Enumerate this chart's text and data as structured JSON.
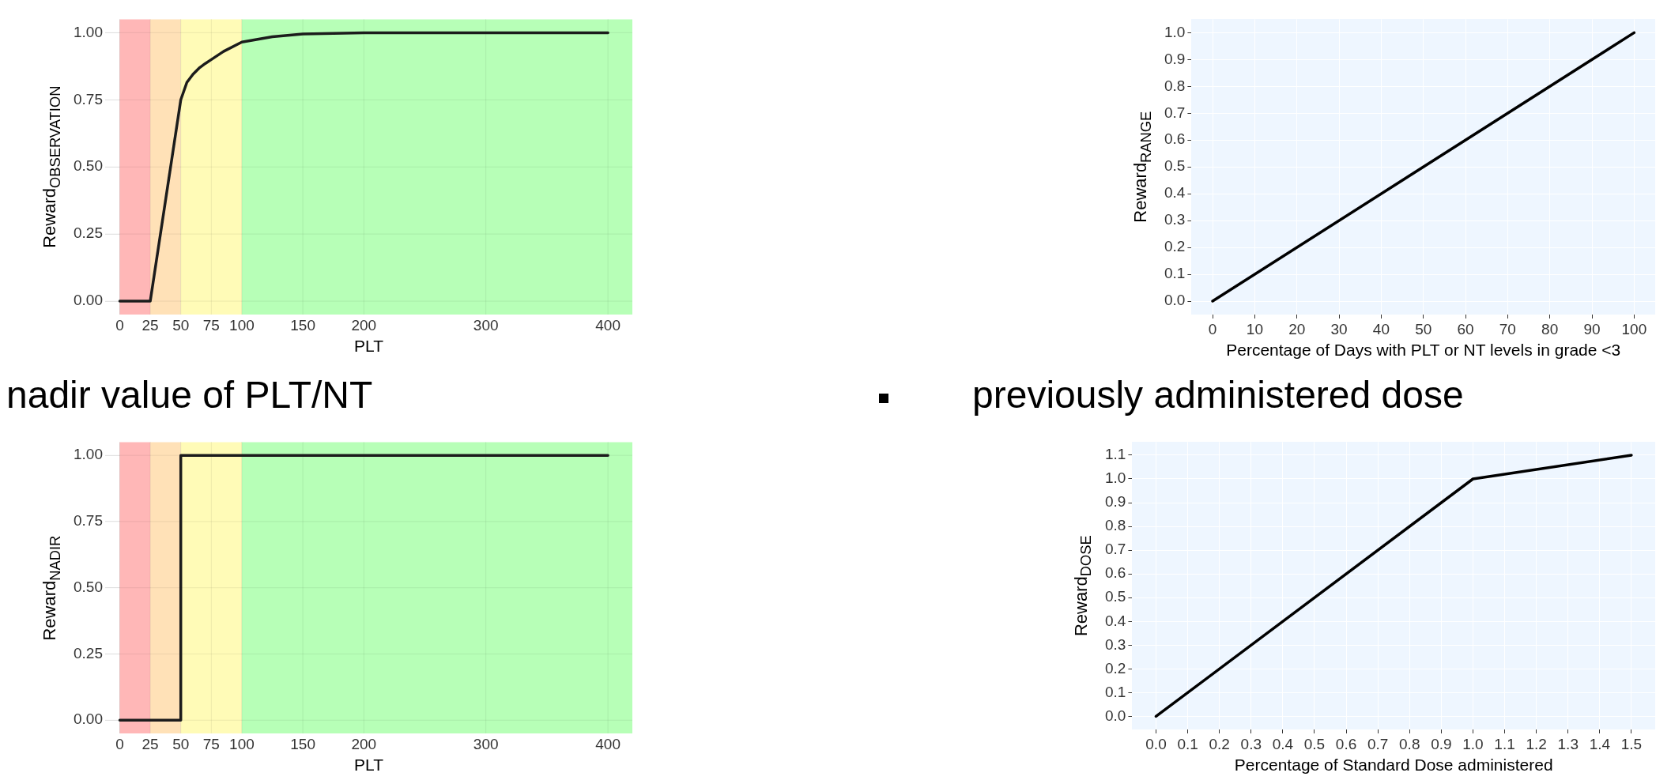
{
  "chart_data": [
    {
      "type": "line",
      "xlabel": "PLT",
      "ylabel": "Reward$_{OBSERVATION}$",
      "series": [
        {
          "color": "#1c1c1c",
          "x": [
            0,
            25,
            50,
            55,
            60,
            65,
            70,
            75,
            85,
            100,
            125,
            150,
            200,
            400
          ],
          "values": [
            0,
            0,
            0.75,
            0.815,
            0.845,
            0.868,
            0.885,
            0.9,
            0.93,
            0.965,
            0.985,
            0.995,
            1,
            1
          ]
        }
      ],
      "xlim": [
        -12,
        420
      ],
      "xticks": [
        0,
        25,
        50,
        75,
        100,
        150,
        200,
        300,
        400
      ],
      "ylim": [
        -0.05,
        1.05
      ],
      "yticks": [
        {
          "value": 0,
          "label": "0.00"
        },
        {
          "value": 0.25,
          "label": "0.25"
        },
        {
          "value": 0.5,
          "label": "0.50"
        },
        {
          "value": 0.75,
          "label": "0.75"
        },
        {
          "value": 1,
          "label": "1.00"
        }
      ],
      "grid": true,
      "bands": [
        {
          "axis": "x",
          "from": 0,
          "to": 25,
          "color": "#ffb3b3"
        },
        {
          "axis": "x",
          "from": 25,
          "to": 50,
          "color": "#ffdfb3"
        },
        {
          "axis": "x",
          "from": 50,
          "to": 100,
          "color": "#fffbb3"
        },
        {
          "axis": "x",
          "from": 100,
          "to": 420,
          "color": "#b3ffb3"
        }
      ]
    },
    {
      "type": "line",
      "xlabel": "Percentage of Days with PLT or NT levels in grade <3",
      "ylabel": "Reward$_{RANGE}$",
      "series": [
        {
          "color": "#000000",
          "x": [
            0,
            100
          ],
          "values": [
            0,
            1
          ]
        }
      ],
      "xlim": [
        -5,
        105
      ],
      "xticks": [
        0,
        10,
        20,
        30,
        40,
        50,
        60,
        70,
        80,
        90,
        100
      ],
      "ylim": [
        -0.05,
        1.05
      ],
      "yticks": [
        {
          "value": 0,
          "label": "0.0"
        },
        {
          "value": 0.1,
          "label": "0.1"
        },
        {
          "value": 0.2,
          "label": "0.2"
        },
        {
          "value": 0.3,
          "label": "0.3"
        },
        {
          "value": 0.4,
          "label": "0.4"
        },
        {
          "value": 0.5,
          "label": "0.5"
        },
        {
          "value": 0.6,
          "label": "0.6"
        },
        {
          "value": 0.7,
          "label": "0.7"
        },
        {
          "value": 0.8,
          "label": "0.8"
        },
        {
          "value": 0.9,
          "label": "0.9"
        },
        {
          "value": 1,
          "label": "1.0"
        }
      ],
      "grid": true
    },
    {
      "type": "line",
      "title": "nadir value of PLT/NT",
      "xlabel": "PLT",
      "ylabel": "Reward$_{NADIR}$",
      "series": [
        {
          "color": "#1c1c1c",
          "x": [
            0,
            50,
            50,
            400
          ],
          "values": [
            0,
            0,
            1,
            1
          ]
        }
      ],
      "xlim": [
        -12,
        420
      ],
      "xticks": [
        0,
        25,
        50,
        75,
        100,
        150,
        200,
        300,
        400
      ],
      "ylim": [
        -0.05,
        1.05
      ],
      "yticks": [
        {
          "value": 0,
          "label": "0.00"
        },
        {
          "value": 0.25,
          "label": "0.25"
        },
        {
          "value": 0.5,
          "label": "0.50"
        },
        {
          "value": 0.75,
          "label": "0.75"
        },
        {
          "value": 1,
          "label": "1.00"
        }
      ],
      "grid": true,
      "bands": [
        {
          "axis": "x",
          "from": 0,
          "to": 25,
          "color": "#ffb3b3"
        },
        {
          "axis": "x",
          "from": 25,
          "to": 50,
          "color": "#ffdfb3"
        },
        {
          "axis": "x",
          "from": 50,
          "to": 100,
          "color": "#fffbb3"
        },
        {
          "axis": "x",
          "from": 100,
          "to": 420,
          "color": "#b3ffb3"
        }
      ]
    },
    {
      "type": "line",
      "title": "previously administered dose",
      "xlabel": "Percentage of Standard Dose administered",
      "ylabel": "Reward$_{DOSE}$",
      "series": [
        {
          "color": "#000000",
          "x": [
            0,
            1,
            1.5
          ],
          "values": [
            0,
            1,
            1.1
          ]
        }
      ],
      "xlim": [
        -0.075,
        1.575
      ],
      "xticks": [
        {
          "value": 0,
          "label": "0.0"
        },
        {
          "value": 0.1,
          "label": "0.1"
        },
        {
          "value": 0.2,
          "label": "0.2"
        },
        {
          "value": 0.3,
          "label": "0.3"
        },
        {
          "value": 0.4,
          "label": "0.4"
        },
        {
          "value": 0.5,
          "label": "0.5"
        },
        {
          "value": 0.6,
          "label": "0.6"
        },
        {
          "value": 0.7,
          "label": "0.7"
        },
        {
          "value": 0.8,
          "label": "0.8"
        },
        {
          "value": 0.9,
          "label": "0.9"
        },
        {
          "value": 1,
          "label": "1.0"
        },
        {
          "value": 1.1,
          "label": "1.1"
        },
        {
          "value": 1.2,
          "label": "1.2"
        },
        {
          "value": 1.3,
          "label": "1.3"
        },
        {
          "value": 1.4,
          "label": "1.4"
        },
        {
          "value": 1.5,
          "label": "1.5"
        }
      ],
      "ylim": [
        -0.055,
        1.155
      ],
      "yticks": [
        {
          "value": 0,
          "label": "0.0"
        },
        {
          "value": 0.1,
          "label": "0.1"
        },
        {
          "value": 0.2,
          "label": "0.2"
        },
        {
          "value": 0.3,
          "label": "0.3"
        },
        {
          "value": 0.4,
          "label": "0.4"
        },
        {
          "value": 0.5,
          "label": "0.5"
        },
        {
          "value": 0.6,
          "label": "0.6"
        },
        {
          "value": 0.7,
          "label": "0.7"
        },
        {
          "value": 0.8,
          "label": "0.8"
        },
        {
          "value": 0.9,
          "label": "0.9"
        },
        {
          "value": 1,
          "label": "1.0"
        },
        {
          "value": 1.1,
          "label": "1.1"
        }
      ],
      "grid": true
    }
  ]
}
